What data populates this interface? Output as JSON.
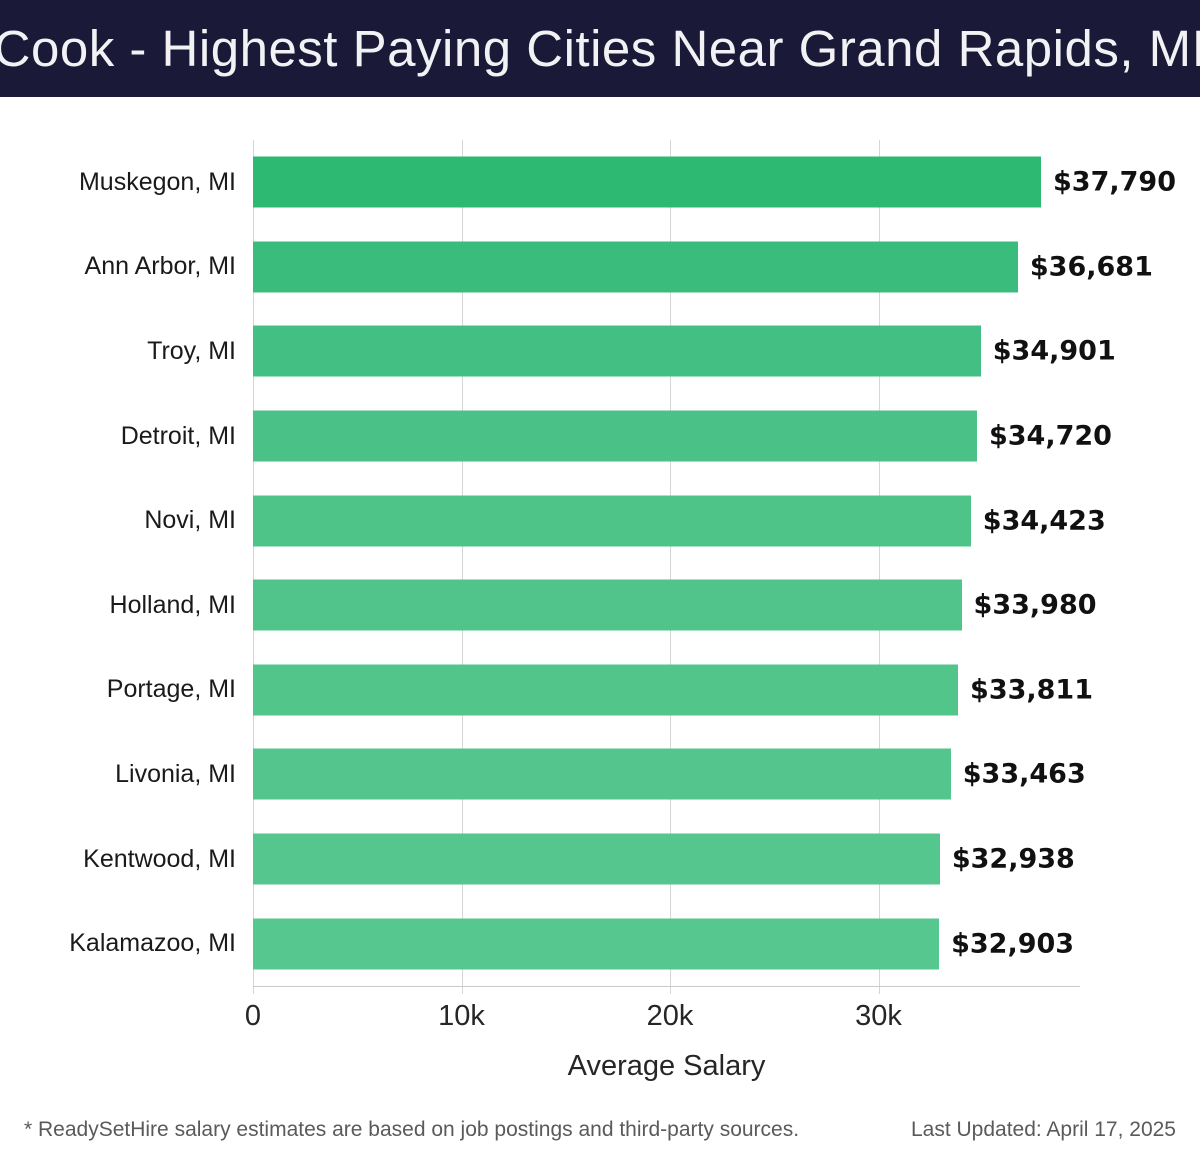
{
  "title": "Cook - Highest Paying Cities Near Grand Rapids, MI",
  "chart_data": {
    "type": "bar",
    "orientation": "horizontal",
    "title": "Cook - Highest Paying Cities Near Grand Rapids, MI",
    "categories": [
      "Muskegon, MI",
      "Ann Arbor, MI",
      "Troy, MI",
      "Detroit, MI",
      "Novi, MI",
      "Holland, MI",
      "Portage, MI",
      "Livonia, MI",
      "Kentwood, MI",
      "Kalamazoo, MI"
    ],
    "values": [
      37790,
      36681,
      34901,
      34720,
      34423,
      33980,
      33811,
      33463,
      32938,
      32903
    ],
    "value_labels": [
      "$37,790",
      "$36,681",
      "$34,901",
      "$34,720",
      "$34,423",
      "$33,980",
      "$33,811",
      "$33,463",
      "$32,938",
      "$32,903"
    ],
    "bar_colors": [
      "#2eb973",
      "#3abc7c",
      "#44bf83",
      "#4ac186",
      "#4ec488",
      "#50c48a",
      "#52c58b",
      "#54c68d",
      "#55c68e",
      "#56c78f"
    ],
    "xlabel": "Average Salary",
    "ylabel": "",
    "xlim": [
      0,
      39660
    ],
    "x_ticks": [
      {
        "value": 0,
        "label": "0"
      },
      {
        "value": 10000,
        "label": "10k"
      },
      {
        "value": 20000,
        "label": "20k"
      },
      {
        "value": 30000,
        "label": "30k"
      }
    ],
    "grid": true,
    "legend": false
  },
  "colors": {
    "header_bg": "#1a1a38",
    "title_text": "#f2f2f5",
    "gridline": "#d6d6d6",
    "axis_line": "#c9c9c9",
    "category_text": "#1a1a1a",
    "value_text": "#111111",
    "footer_text": "#5a5a5a"
  },
  "footer": {
    "note": "* ReadySetHire salary estimates are based on job postings and third-party sources.",
    "last_updated": "Last Updated: April 17, 2025"
  }
}
